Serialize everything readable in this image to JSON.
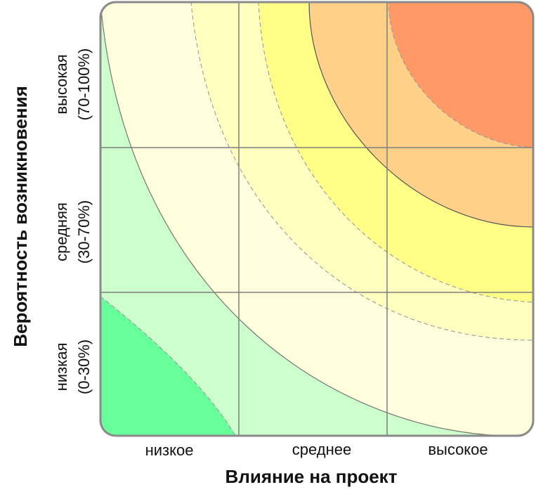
{
  "chart_data": {
    "type": "heatmap",
    "x_axis": {
      "label": "Влияние на проект",
      "categories": [
        "низкое",
        "среднее",
        "высокое"
      ]
    },
    "y_axis": {
      "label": "Вероятность возникновения",
      "categories": [
        {
          "name": "низкая",
          "range": "(0-30%)"
        },
        {
          "name": "средняя",
          "range": "(30-70%)"
        },
        {
          "name": "высокая",
          "range": "(70-100%)"
        }
      ]
    },
    "zones_from_outer_to_inner": [
      {
        "color": "#ccffcc",
        "boundary": "none"
      },
      {
        "color": "#ffffdd",
        "boundary": "solid"
      },
      {
        "color": "#ffffc0",
        "boundary": "dashed"
      },
      {
        "color": "#ffff88",
        "boundary": "dashed"
      },
      {
        "color": "#ffd088",
        "boundary": "solid"
      },
      {
        "color": "#ff9966",
        "boundary": "dashed"
      }
    ],
    "low_risk_corner": {
      "color": "#66ff99",
      "boundary": "dashed"
    },
    "grid": true
  }
}
